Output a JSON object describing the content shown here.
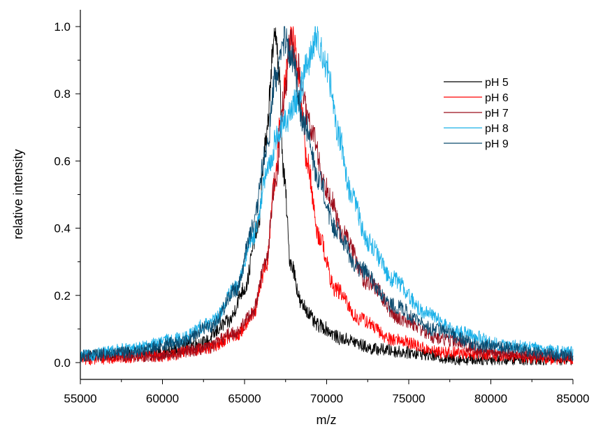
{
  "chart_data": {
    "type": "line",
    "title": "",
    "xlabel": "m/z",
    "ylabel": "relative intensity",
    "xlim": [
      55000,
      85000
    ],
    "ylim": [
      -0.05,
      1.05
    ],
    "x_ticks": [
      55000,
      60000,
      65000,
      70000,
      75000,
      80000,
      85000
    ],
    "x_tick_labels": [
      "55000",
      "60000",
      "65000",
      "70000",
      "75000",
      "80000",
      "85000"
    ],
    "y_ticks": [
      0.0,
      0.2,
      0.4,
      0.6,
      0.8,
      1.0
    ],
    "y_tick_labels": [
      "0.0",
      "0.2",
      "0.4",
      "0.6",
      "0.8",
      "1.0"
    ],
    "grid": false,
    "legend_position": "top-right",
    "noise_amplitude": 0.025,
    "series": [
      {
        "name": "pH 5",
        "color": "#000000",
        "points": [
          [
            55000,
            0.02
          ],
          [
            60000,
            0.03
          ],
          [
            62500,
            0.06
          ],
          [
            64000,
            0.12
          ],
          [
            65000,
            0.22
          ],
          [
            65800,
            0.4
          ],
          [
            66300,
            0.65
          ],
          [
            66700,
            0.9
          ],
          [
            66900,
            1.0
          ],
          [
            67100,
            0.85
          ],
          [
            67400,
            0.55
          ],
          [
            67800,
            0.3
          ],
          [
            68500,
            0.17
          ],
          [
            69500,
            0.11
          ],
          [
            71000,
            0.07
          ],
          [
            73000,
            0.04
          ],
          [
            75000,
            0.03
          ],
          [
            78000,
            0.01
          ],
          [
            85000,
            0.01
          ]
        ]
      },
      {
        "name": "pH 6",
        "color": "#ff0000",
        "points": [
          [
            55000,
            0.01
          ],
          [
            60000,
            0.02
          ],
          [
            62500,
            0.04
          ],
          [
            64500,
            0.08
          ],
          [
            65500,
            0.14
          ],
          [
            66300,
            0.28
          ],
          [
            66800,
            0.52
          ],
          [
            67200,
            0.72
          ],
          [
            67600,
            0.88
          ],
          [
            67900,
            0.98
          ],
          [
            68300,
            0.85
          ],
          [
            68800,
            0.6
          ],
          [
            69500,
            0.38
          ],
          [
            70500,
            0.22
          ],
          [
            72000,
            0.13
          ],
          [
            74000,
            0.07
          ],
          [
            77000,
            0.03
          ],
          [
            85000,
            0.01
          ]
        ]
      },
      {
        "name": "pH 7",
        "color": "#9b0d1b",
        "points": [
          [
            55000,
            0.02
          ],
          [
            60000,
            0.02
          ],
          [
            62500,
            0.04
          ],
          [
            64500,
            0.09
          ],
          [
            65500,
            0.15
          ],
          [
            66300,
            0.3
          ],
          [
            66900,
            0.55
          ],
          [
            67400,
            0.78
          ],
          [
            67800,
            0.95
          ],
          [
            68200,
            0.88
          ],
          [
            69000,
            0.7
          ],
          [
            70000,
            0.52
          ],
          [
            71000,
            0.38
          ],
          [
            72500,
            0.24
          ],
          [
            74500,
            0.13
          ],
          [
            77000,
            0.07
          ],
          [
            80000,
            0.03
          ],
          [
            85000,
            0.02
          ]
        ]
      },
      {
        "name": "pH 8",
        "color": "#1ab0e8",
        "points": [
          [
            55000,
            0.02
          ],
          [
            58000,
            0.04
          ],
          [
            61000,
            0.07
          ],
          [
            63000,
            0.12
          ],
          [
            64500,
            0.22
          ],
          [
            65500,
            0.38
          ],
          [
            66500,
            0.58
          ],
          [
            67000,
            0.68
          ],
          [
            67500,
            0.72
          ],
          [
            68200,
            0.78
          ],
          [
            68900,
            0.9
          ],
          [
            69400,
            0.97
          ],
          [
            70000,
            0.88
          ],
          [
            70700,
            0.68
          ],
          [
            71500,
            0.5
          ],
          [
            72500,
            0.36
          ],
          [
            74000,
            0.25
          ],
          [
            76000,
            0.15
          ],
          [
            78000,
            0.09
          ],
          [
            81000,
            0.05
          ],
          [
            85000,
            0.03
          ]
        ]
      },
      {
        "name": "pH 9",
        "color": "#0b4a6e",
        "points": [
          [
            55000,
            0.02
          ],
          [
            58000,
            0.03
          ],
          [
            61000,
            0.06
          ],
          [
            63000,
            0.11
          ],
          [
            64500,
            0.22
          ],
          [
            65500,
            0.4
          ],
          [
            66300,
            0.62
          ],
          [
            66900,
            0.85
          ],
          [
            67400,
            0.96
          ],
          [
            67900,
            0.9
          ],
          [
            68600,
            0.72
          ],
          [
            69500,
            0.55
          ],
          [
            70500,
            0.4
          ],
          [
            72000,
            0.28
          ],
          [
            74000,
            0.17
          ],
          [
            76500,
            0.1
          ],
          [
            79500,
            0.05
          ],
          [
            85000,
            0.02
          ]
        ]
      }
    ]
  }
}
